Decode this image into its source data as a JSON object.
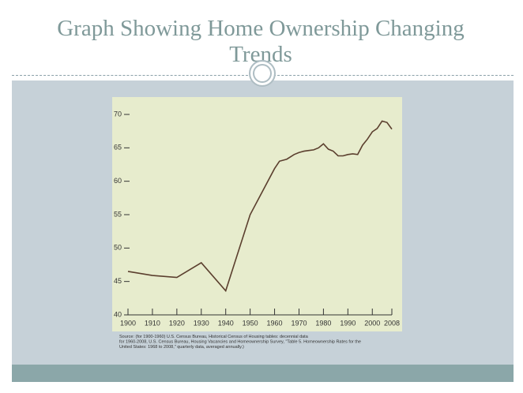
{
  "slide": {
    "title": "Graph Showing Home Ownership Changing Trends"
  },
  "chart_data": {
    "type": "line",
    "x": [
      1900,
      1910,
      1920,
      1930,
      1940,
      1950,
      1960,
      1962,
      1965,
      1968,
      1970,
      1972,
      1974,
      1976,
      1978,
      1980,
      1982,
      1984,
      1986,
      1988,
      1990,
      1992,
      1994,
      1996,
      1998,
      2000,
      2002,
      2004,
      2006,
      2008
    ],
    "series": [
      {
        "color": "#5b3f2e",
        "values": [
          46.5,
          45.9,
          45.6,
          47.8,
          43.6,
          55.0,
          61.9,
          63.0,
          63.3,
          64.0,
          64.3,
          64.5,
          64.6,
          64.7,
          65.0,
          65.6,
          64.8,
          64.5,
          63.8,
          63.8,
          64.0,
          64.1,
          64.0,
          65.4,
          66.3,
          67.4,
          67.9,
          69.0,
          68.8,
          67.8
        ]
      }
    ],
    "xlim": [
      1900,
      2008
    ],
    "ylim": [
      40,
      70
    ],
    "xticks": [
      1900,
      1910,
      1920,
      1930,
      1940,
      1950,
      1960,
      1970,
      1980,
      1990,
      2000,
      2008
    ],
    "yticks": [
      40,
      45,
      50,
      55,
      60,
      65,
      70
    ],
    "source": [
      "Source: (for 1900-1960) U.S. Census Bureau, Historical Census of Housing tables: decennial data",
      "for 1960-2008, U.S. Census Bureau, Housing Vacancies and Homeownership Survey, \"Table 5. Homeownership Rates for the",
      "United States: 1968 to 2008,\" quarterly data, averaged annually.)"
    ]
  }
}
